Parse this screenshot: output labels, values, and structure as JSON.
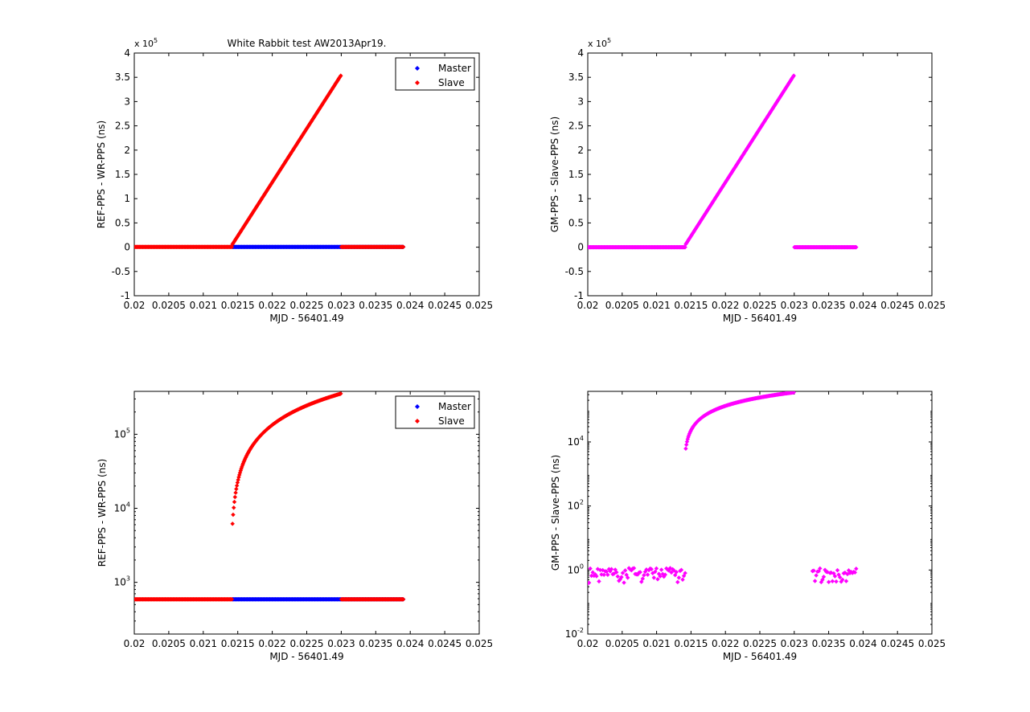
{
  "chart_data": [
    {
      "type": "scatter",
      "title": "White Rabbit test AW2013Apr19.",
      "xlabel": "MJD - 56401.49",
      "ylabel": "REF-PPS - WR-PPS (ns)",
      "yscale": "linear",
      "y_multiplier": "x 10^5",
      "xlim": [
        0.02,
        0.025
      ],
      "ylim": [
        -100000,
        400000
      ],
      "xticks": [
        "0.02",
        "0.0205",
        "0.021",
        "0.0215",
        "0.022",
        "0.0225",
        "0.023",
        "0.0235",
        "0.024",
        "0.0245",
        "0.025"
      ],
      "yticks": [
        "-1",
        "-0.5",
        "0",
        "0.5",
        "1",
        "1.5",
        "2",
        "2.5",
        "3",
        "3.5",
        "4"
      ],
      "legend": {
        "position": "top-right",
        "entries": [
          "Master",
          "Slave"
        ]
      },
      "series": [
        {
          "name": "Master",
          "color": "#0000ff",
          "x_range": [
            0.02,
            0.0239
          ],
          "y": 590,
          "shape": "constant"
        },
        {
          "name": "Slave",
          "color": "#ff0000",
          "x_range": [
            0.02,
            0.0239
          ],
          "y": 590,
          "shape": "ramp",
          "ramp": {
            "x_start": 0.02142,
            "x_end": 0.023,
            "y_start": 5300,
            "y_end": 355000
          }
        }
      ]
    },
    {
      "type": "scatter",
      "title": "",
      "xlabel": "MJD - 56401.49",
      "ylabel": "GM-PPS - Slave-PPS (ns)",
      "yscale": "linear",
      "y_multiplier": "x 10^5",
      "xlim": [
        0.02,
        0.025
      ],
      "ylim": [
        -100000,
        400000
      ],
      "xticks": [
        "0.02",
        "0.0205",
        "0.021",
        "0.0215",
        "0.022",
        "0.0225",
        "0.023",
        "0.0235",
        "0.024",
        "0.0245",
        "0.025"
      ],
      "yticks": [
        "-1",
        "-0.5",
        "0",
        "0.5",
        "1",
        "1.5",
        "2",
        "2.5",
        "3",
        "3.5",
        "4"
      ],
      "series": [
        {
          "color": "#ff00ff",
          "x_range": [
            0.02,
            0.0239
          ],
          "y": 1,
          "shape": "ramp",
          "ramp": {
            "x_start": 0.02142,
            "x_end": 0.023,
            "y_start": 5300,
            "y_end": 355000
          }
        }
      ]
    },
    {
      "type": "scatter",
      "title": "",
      "xlabel": "MJD - 56401.49",
      "ylabel": "REF-PPS - WR-PPS (ns)",
      "yscale": "log",
      "xlim": [
        0.02,
        0.025
      ],
      "ylim": [
        200,
        380000
      ],
      "xticks": [
        "0.02",
        "0.0205",
        "0.021",
        "0.0215",
        "0.022",
        "0.0225",
        "0.023",
        "0.0235",
        "0.024",
        "0.0245",
        "0.025"
      ],
      "yticks": [
        {
          "base": "10",
          "exp": "3",
          "value": 1000
        },
        {
          "base": "10",
          "exp": "4",
          "value": 10000
        },
        {
          "base": "10",
          "exp": "5",
          "value": 100000
        }
      ],
      "legend": {
        "position": "top-right",
        "entries": [
          "Master",
          "Slave"
        ]
      },
      "series": [
        {
          "name": "Master",
          "color": "#0000ff",
          "x_range": [
            0.02,
            0.0239
          ],
          "y": 590,
          "shape": "constant"
        },
        {
          "name": "Slave",
          "color": "#ff0000",
          "x_range": [
            0.02,
            0.0239
          ],
          "y": 590,
          "shape": "ramp",
          "ramp": {
            "x_start": 0.02142,
            "x_end": 0.023,
            "y_start": 5300,
            "y_end": 355000
          }
        }
      ]
    },
    {
      "type": "scatter",
      "title": "",
      "xlabel": "MJD - 56401.49",
      "ylabel": "GM-PPS - Slave-PPS (ns)",
      "yscale": "log",
      "xlim": [
        0.02,
        0.025
      ],
      "ylim": [
        0.01,
        380000
      ],
      "xticks": [
        "0.02",
        "0.0205",
        "0.021",
        "0.0215",
        "0.022",
        "0.0225",
        "0.023",
        "0.0235",
        "0.024",
        "0.0245",
        "0.025"
      ],
      "yticks": [
        {
          "base": "10",
          "exp": "-2",
          "value": 0.01
        },
        {
          "base": "10",
          "exp": "0",
          "value": 1
        },
        {
          "base": "10",
          "exp": "2",
          "value": 100
        },
        {
          "base": "10",
          "exp": "4",
          "value": 10000
        }
      ],
      "series": [
        {
          "color": "#ff00ff",
          "x_range": [
            0.02,
            0.0239
          ],
          "y": 1,
          "shape": "ramp_noisy",
          "noise": {
            "min": 0.38,
            "max": 1.15
          },
          "ramp": {
            "x_start": 0.02142,
            "x_end": 0.023,
            "y_start": 5300,
            "y_end": 355000
          },
          "gap_x_range": [
            0.023,
            0.02325
          ]
        }
      ]
    }
  ]
}
